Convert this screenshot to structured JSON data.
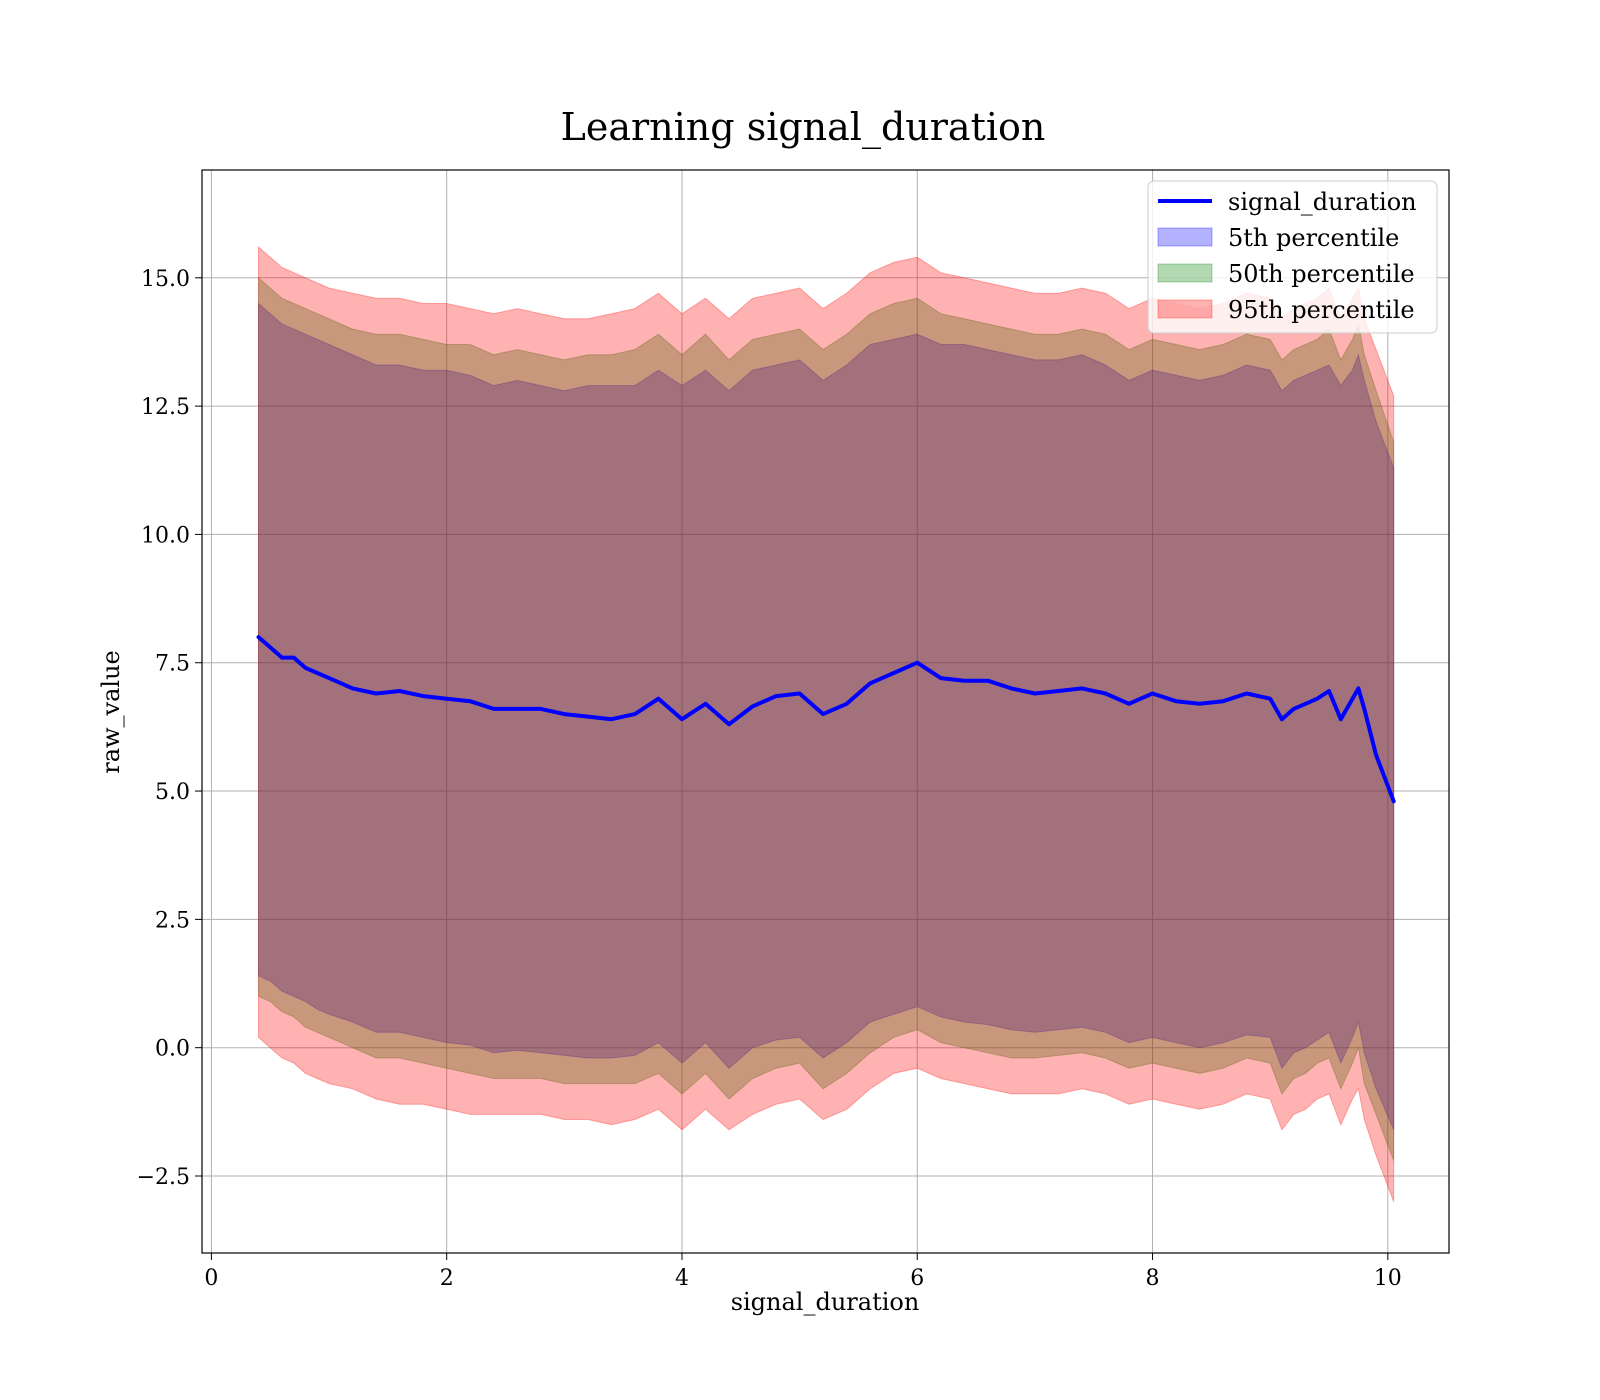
{
  "chart_data": {
    "type": "area",
    "title": "Learning signal_duration",
    "xlabel": "signal_duration",
    "ylabel": "raw_value",
    "xlim": [
      -0.08,
      10.52
    ],
    "ylim": [
      -4.0,
      17.1
    ],
    "xticks": [
      0,
      2,
      4,
      6,
      8,
      10
    ],
    "xtick_labels": [
      "0",
      "2",
      "4",
      "6",
      "8",
      "10"
    ],
    "yticks": [
      -2.5,
      0.0,
      2.5,
      5.0,
      7.5,
      10.0,
      12.5,
      15.0
    ],
    "ytick_labels": [
      "−2.5",
      "0.0",
      "2.5",
      "5.0",
      "7.5",
      "10.0",
      "12.5",
      "15.0"
    ],
    "grid": true,
    "legend_position": "top-right",
    "legend": [
      "signal_duration",
      "5th percentile",
      "50th percentile",
      "95th percentile"
    ],
    "x": [
      0.4,
      0.5,
      0.6,
      0.7,
      0.8,
      0.9,
      1.0,
      1.2,
      1.4,
      1.6,
      1.8,
      2.0,
      2.2,
      2.4,
      2.6,
      2.8,
      3.0,
      3.2,
      3.4,
      3.6,
      3.8,
      4.0,
      4.2,
      4.4,
      4.6,
      4.8,
      5.0,
      5.2,
      5.4,
      5.6,
      5.8,
      6.0,
      6.2,
      6.4,
      6.6,
      6.8,
      7.0,
      7.2,
      7.4,
      7.6,
      7.8,
      8.0,
      8.2,
      8.4,
      8.6,
      8.8,
      9.0,
      9.1,
      9.2,
      9.3,
      9.4,
      9.5,
      9.6,
      9.7,
      9.75,
      9.8,
      9.9,
      10.05
    ],
    "series": [
      {
        "name": "signal_duration",
        "type": "line",
        "color": "#0000ff",
        "values": [
          8.0,
          7.8,
          7.6,
          7.6,
          7.4,
          7.3,
          7.2,
          7.0,
          6.9,
          6.95,
          6.85,
          6.8,
          6.75,
          6.6,
          6.6,
          6.6,
          6.5,
          6.45,
          6.4,
          6.5,
          6.8,
          6.4,
          6.7,
          6.3,
          6.65,
          6.85,
          6.9,
          6.5,
          6.7,
          7.1,
          7.3,
          7.5,
          7.2,
          7.15,
          7.15,
          7.0,
          6.9,
          6.95,
          7.0,
          6.9,
          6.7,
          6.9,
          6.75,
          6.7,
          6.75,
          6.9,
          6.8,
          6.4,
          6.6,
          6.7,
          6.8,
          6.95,
          6.4,
          6.8,
          7.0,
          6.6,
          5.7,
          4.8
        ]
      },
      {
        "name": "5th percentile",
        "type": "band",
        "color": "#0000ff",
        "upper": [
          14.5,
          14.3,
          14.1,
          14.0,
          13.9,
          13.8,
          13.7,
          13.5,
          13.3,
          13.3,
          13.2,
          13.2,
          13.1,
          12.9,
          13.0,
          12.9,
          12.8,
          12.9,
          12.9,
          12.9,
          13.2,
          12.9,
          13.2,
          12.8,
          13.2,
          13.3,
          13.4,
          13.0,
          13.3,
          13.7,
          13.8,
          13.9,
          13.7,
          13.7,
          13.6,
          13.5,
          13.4,
          13.4,
          13.5,
          13.3,
          13.0,
          13.2,
          13.1,
          13.0,
          13.1,
          13.3,
          13.2,
          12.8,
          13.0,
          13.1,
          13.2,
          13.3,
          12.9,
          13.2,
          13.5,
          13.0,
          12.2,
          11.3
        ],
        "lower": [
          1.4,
          1.3,
          1.1,
          1.0,
          0.9,
          0.75,
          0.65,
          0.5,
          0.3,
          0.3,
          0.2,
          0.1,
          0.05,
          -0.1,
          -0.05,
          -0.1,
          -0.15,
          -0.2,
          -0.2,
          -0.15,
          0.1,
          -0.3,
          0.1,
          -0.4,
          0.0,
          0.15,
          0.2,
          -0.2,
          0.1,
          0.5,
          0.65,
          0.8,
          0.6,
          0.5,
          0.45,
          0.35,
          0.3,
          0.35,
          0.4,
          0.3,
          0.1,
          0.2,
          0.1,
          0.0,
          0.1,
          0.25,
          0.2,
          -0.4,
          -0.1,
          0.0,
          0.15,
          0.3,
          -0.3,
          0.2,
          0.5,
          -0.1,
          -0.8,
          -1.6
        ]
      },
      {
        "name": "50th percentile",
        "type": "band",
        "color": "#008000",
        "upper": [
          15.0,
          14.8,
          14.6,
          14.5,
          14.4,
          14.3,
          14.2,
          14.0,
          13.9,
          13.9,
          13.8,
          13.7,
          13.7,
          13.5,
          13.6,
          13.5,
          13.4,
          13.5,
          13.5,
          13.6,
          13.9,
          13.5,
          13.9,
          13.4,
          13.8,
          13.9,
          14.0,
          13.6,
          13.9,
          14.3,
          14.5,
          14.6,
          14.3,
          14.2,
          14.1,
          14.0,
          13.9,
          13.9,
          14.0,
          13.9,
          13.6,
          13.8,
          13.7,
          13.6,
          13.7,
          13.9,
          13.8,
          13.4,
          13.6,
          13.7,
          13.8,
          14.0,
          13.4,
          13.8,
          14.1,
          13.5,
          12.8,
          11.8
        ],
        "lower": [
          1.0,
          0.9,
          0.7,
          0.6,
          0.4,
          0.3,
          0.2,
          0.0,
          -0.2,
          -0.2,
          -0.3,
          -0.4,
          -0.5,
          -0.6,
          -0.6,
          -0.6,
          -0.7,
          -0.7,
          -0.7,
          -0.7,
          -0.5,
          -0.9,
          -0.5,
          -1.0,
          -0.6,
          -0.4,
          -0.3,
          -0.8,
          -0.5,
          -0.1,
          0.2,
          0.35,
          0.1,
          0.0,
          -0.1,
          -0.2,
          -0.2,
          -0.15,
          -0.1,
          -0.2,
          -0.4,
          -0.3,
          -0.4,
          -0.5,
          -0.4,
          -0.2,
          -0.3,
          -0.9,
          -0.6,
          -0.5,
          -0.3,
          -0.2,
          -0.8,
          -0.3,
          0.0,
          -0.7,
          -1.3,
          -2.2
        ]
      },
      {
        "name": "95th percentile",
        "type": "band",
        "color": "#ff0000",
        "upper": [
          15.6,
          15.4,
          15.2,
          15.1,
          15.0,
          14.9,
          14.8,
          14.7,
          14.6,
          14.6,
          14.5,
          14.5,
          14.4,
          14.3,
          14.4,
          14.3,
          14.2,
          14.2,
          14.3,
          14.4,
          14.7,
          14.3,
          14.6,
          14.2,
          14.6,
          14.7,
          14.8,
          14.4,
          14.7,
          15.1,
          15.3,
          15.4,
          15.1,
          15.0,
          14.9,
          14.8,
          14.7,
          14.7,
          14.8,
          14.7,
          14.4,
          14.6,
          14.5,
          14.4,
          14.5,
          14.7,
          14.6,
          14.2,
          14.4,
          14.5,
          14.6,
          14.8,
          14.2,
          14.6,
          14.8,
          14.2,
          13.6,
          12.7
        ],
        "lower": [
          0.2,
          0.0,
          -0.2,
          -0.3,
          -0.5,
          -0.6,
          -0.7,
          -0.8,
          -1.0,
          -1.1,
          -1.1,
          -1.2,
          -1.3,
          -1.3,
          -1.3,
          -1.3,
          -1.4,
          -1.4,
          -1.5,
          -1.4,
          -1.2,
          -1.6,
          -1.2,
          -1.6,
          -1.3,
          -1.1,
          -1.0,
          -1.4,
          -1.2,
          -0.8,
          -0.5,
          -0.4,
          -0.6,
          -0.7,
          -0.8,
          -0.9,
          -0.9,
          -0.9,
          -0.8,
          -0.9,
          -1.1,
          -1.0,
          -1.1,
          -1.2,
          -1.1,
          -0.9,
          -1.0,
          -1.6,
          -1.3,
          -1.2,
          -1.0,
          -0.9,
          -1.5,
          -1.0,
          -0.8,
          -1.4,
          -2.1,
          -3.0
        ]
      }
    ]
  }
}
